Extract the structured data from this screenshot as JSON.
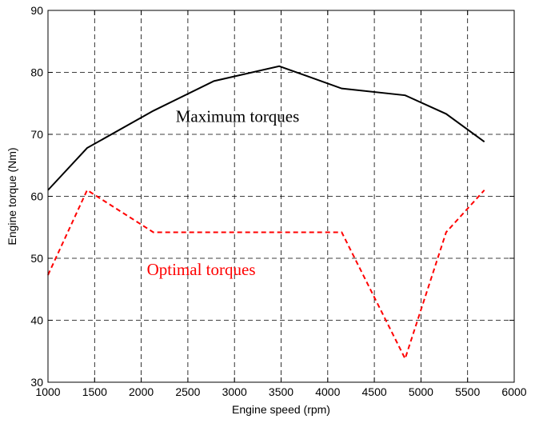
{
  "chart_data": {
    "type": "line",
    "xlabel": "Engine speed (rpm)",
    "ylabel": "Engine torque (Nm)",
    "xlim": [
      1000,
      6000
    ],
    "ylim": [
      30,
      90
    ],
    "xticks": [
      1000,
      1500,
      2000,
      2500,
      3000,
      3500,
      4000,
      4500,
      5000,
      5500,
      6000
    ],
    "yticks": [
      30,
      40,
      50,
      60,
      70,
      80,
      90
    ],
    "grid": true,
    "series": [
      {
        "name": "Maximum torques",
        "color": "#000000",
        "style": "solid",
        "x": [
          1000,
          1420,
          2130,
          2780,
          3480,
          4150,
          4830,
          5270,
          5680
        ],
        "y": [
          61.0,
          67.8,
          73.8,
          78.6,
          81.0,
          77.4,
          76.3,
          73.3,
          68.8
        ]
      },
      {
        "name": "Optimal torques",
        "color": "#ff0000",
        "style": "dashed",
        "x": [
          1000,
          1420,
          2130,
          2780,
          3480,
          4150,
          4830,
          5270,
          5680
        ],
        "y": [
          47.3,
          61.0,
          54.2,
          54.2,
          54.2,
          54.2,
          33.8,
          54.2,
          61.0
        ]
      }
    ],
    "annotations": [
      {
        "text": "Maximum torques",
        "x": 2370,
        "y": 72.0,
        "color": "#000000"
      },
      {
        "text": "Optimal torques",
        "x": 2060,
        "y": 47.3,
        "color": "#ff0000"
      }
    ]
  }
}
